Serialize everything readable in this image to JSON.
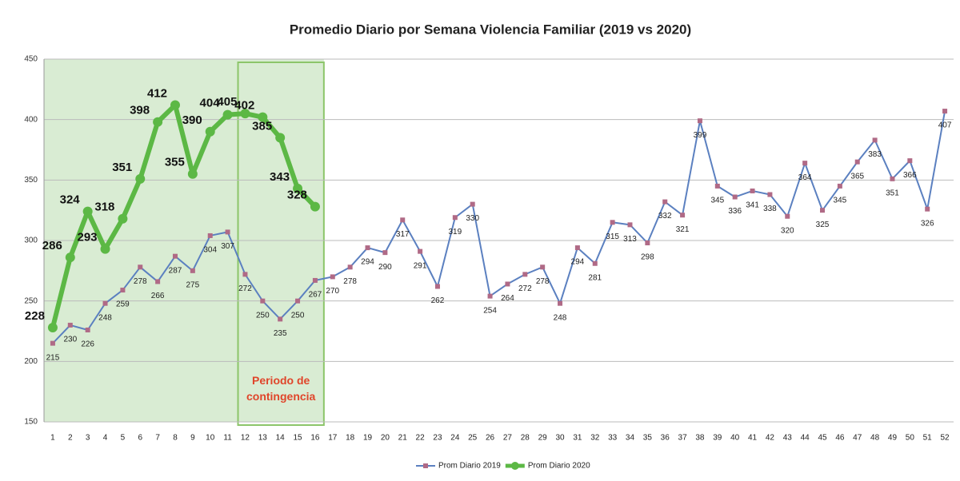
{
  "chart_data": {
    "type": "line",
    "title": "Promedio Diario por Semana Violencia Familiar (2019 vs 2020)",
    "categories": [
      "1",
      "2",
      "3",
      "4",
      "5",
      "6",
      "7",
      "8",
      "9",
      "10",
      "11",
      "12",
      "13",
      "14",
      "15",
      "16",
      "17",
      "18",
      "19",
      "20",
      "21",
      "22",
      "23",
      "24",
      "25",
      "26",
      "27",
      "28",
      "29",
      "30",
      "31",
      "32",
      "33",
      "34",
      "35",
      "36",
      "37",
      "38",
      "39",
      "40",
      "41",
      "42",
      "43",
      "44",
      "45",
      "46",
      "47",
      "48",
      "49",
      "50",
      "51",
      "52"
    ],
    "series": [
      {
        "name": "Prom Diario 2019",
        "color": "#5b80c0",
        "marker_color": "#b06a86",
        "values": [
          215,
          230,
          226,
          248,
          259,
          278,
          266,
          287,
          275,
          304,
          307,
          272,
          250,
          235,
          250,
          267,
          270,
          278,
          294,
          290,
          317,
          291,
          262,
          319,
          330,
          254,
          264,
          272,
          278,
          248,
          294,
          281,
          315,
          313,
          298,
          332,
          321,
          399,
          345,
          336,
          341,
          338,
          320,
          364,
          325,
          345,
          365,
          383,
          351,
          366,
          326,
          407
        ]
      },
      {
        "name": "Prom Diario 2020",
        "color": "#5cb845",
        "marker_color": "#5cb845",
        "values": [
          228,
          286,
          324,
          293,
          318,
          351,
          398,
          412,
          355,
          390,
          404,
          405,
          402,
          385,
          343,
          328,
          null,
          null,
          null,
          null,
          null,
          null,
          null,
          null,
          null,
          null,
          null,
          null,
          null,
          null,
          null,
          null,
          null,
          null,
          null,
          null,
          null,
          null,
          null,
          null,
          null,
          null,
          null,
          null,
          null,
          null,
          null,
          null,
          null,
          null,
          null,
          null
        ]
      }
    ],
    "annotation": {
      "text": "Periodo de contingencia",
      "span": [
        "12",
        "16"
      ]
    },
    "ylim": [
      150,
      450
    ],
    "yticks": [
      150,
      200,
      250,
      300,
      350,
      400,
      450
    ],
    "grid": true,
    "legend": "bottom"
  }
}
